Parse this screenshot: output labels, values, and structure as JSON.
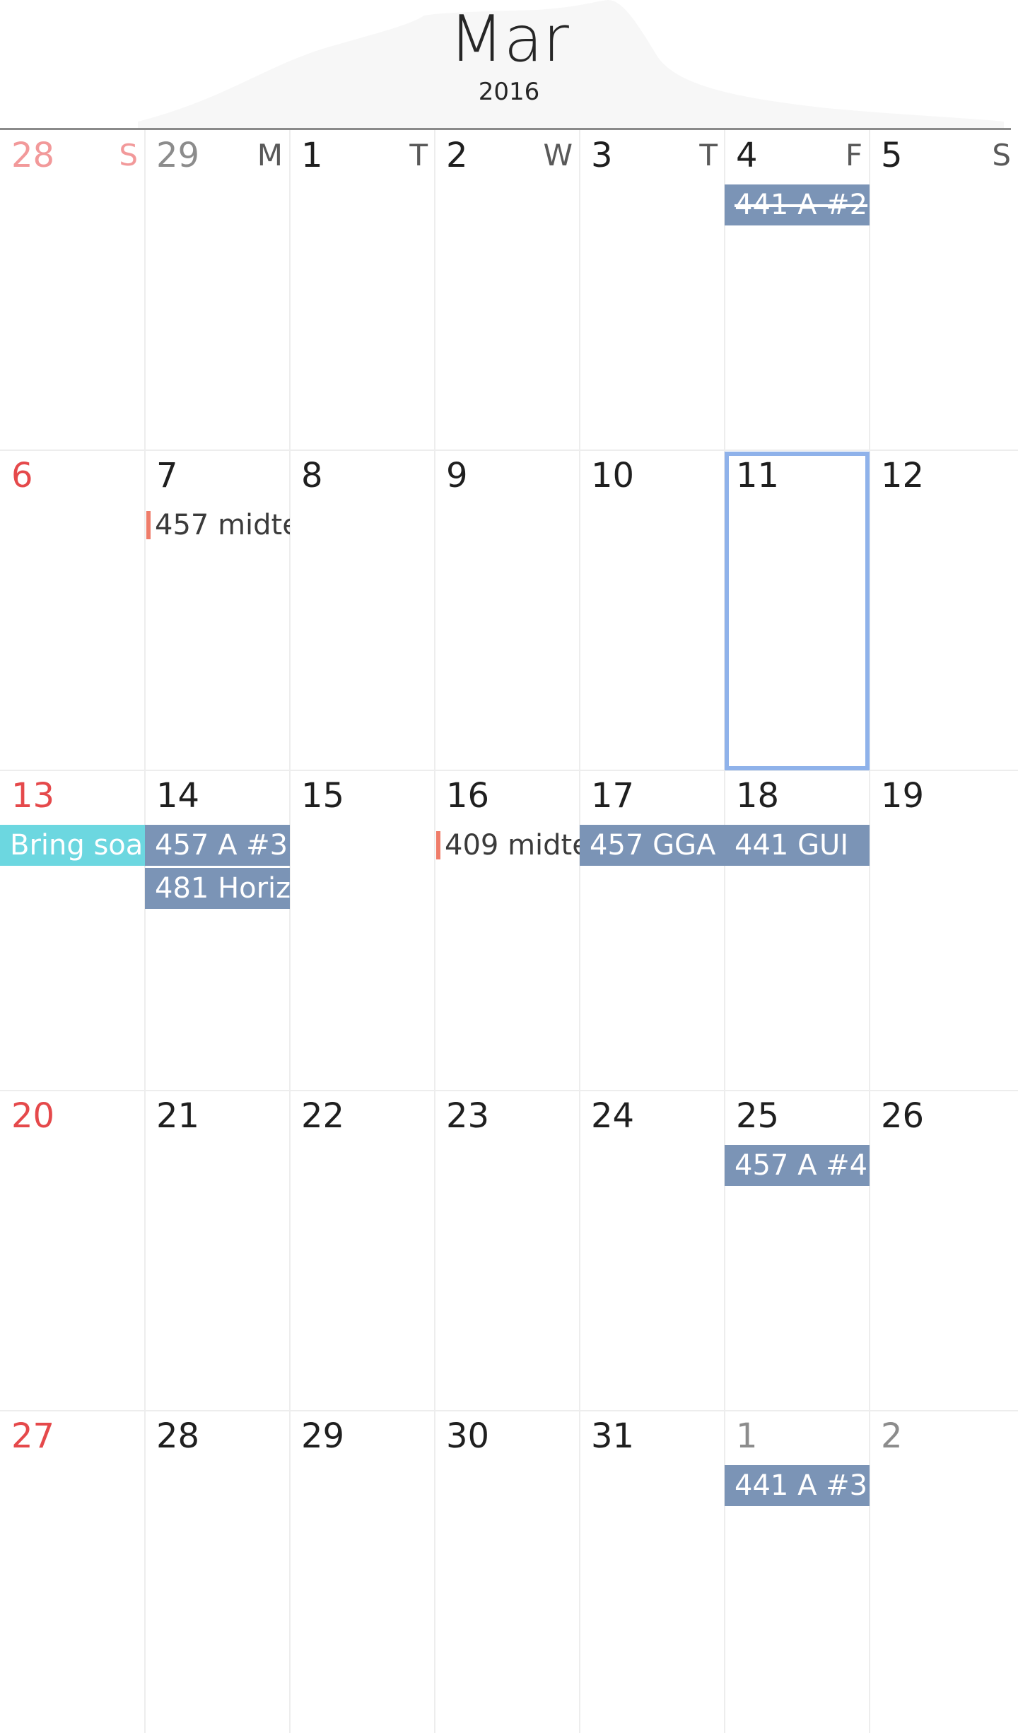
{
  "header": {
    "month": "Mar",
    "year": "2016"
  },
  "colors": {
    "sunday": "#e5494b",
    "outside_sunday": "#f2999a",
    "outside_day": "#8c8c8c",
    "event": "#7b94b6",
    "event_highlight": "#6cd7e0",
    "task_marker": "#ef7d6a",
    "today_border": "#8fb2ea"
  },
  "weekday_initials": [
    "S",
    "M",
    "T",
    "W",
    "T",
    "F",
    "S"
  ],
  "weeks": [
    {
      "days": [
        {
          "num": "28",
          "outside": true,
          "events": []
        },
        {
          "num": "29",
          "outside": true,
          "events": []
        },
        {
          "num": "1",
          "events": []
        },
        {
          "num": "2",
          "events": []
        },
        {
          "num": "3",
          "events": []
        },
        {
          "num": "4",
          "events": [
            {
              "text": "441 A #2",
              "kind": "event",
              "done": true
            }
          ]
        },
        {
          "num": "5",
          "events": []
        }
      ]
    },
    {
      "days": [
        {
          "num": "6",
          "events": []
        },
        {
          "num": "7",
          "events": [
            {
              "text": "457 midte",
              "kind": "task"
            }
          ]
        },
        {
          "num": "8",
          "events": []
        },
        {
          "num": "9",
          "events": []
        },
        {
          "num": "10",
          "events": []
        },
        {
          "num": "11",
          "today": true,
          "events": []
        },
        {
          "num": "12",
          "events": []
        }
      ]
    },
    {
      "days": [
        {
          "num": "13",
          "events": [
            {
              "text": "Bring soa",
              "kind": "highlight"
            }
          ]
        },
        {
          "num": "14",
          "events": [
            {
              "text": "457 A #3",
              "kind": "event"
            },
            {
              "text": "481 Horiz",
              "kind": "event"
            }
          ]
        },
        {
          "num": "15",
          "events": []
        },
        {
          "num": "16",
          "events": [
            {
              "text": "409 midte",
              "kind": "task"
            }
          ]
        },
        {
          "num": "17",
          "events": [
            {
              "text": "457 GGA",
              "kind": "event"
            }
          ]
        },
        {
          "num": "18",
          "events": [
            {
              "text": "441 GUI",
              "kind": "event"
            }
          ]
        },
        {
          "num": "19",
          "events": []
        }
      ]
    },
    {
      "days": [
        {
          "num": "20",
          "events": []
        },
        {
          "num": "21",
          "events": []
        },
        {
          "num": "22",
          "events": []
        },
        {
          "num": "23",
          "events": []
        },
        {
          "num": "24",
          "events": []
        },
        {
          "num": "25",
          "events": [
            {
              "text": "457 A #4",
              "kind": "event"
            }
          ]
        },
        {
          "num": "26",
          "events": []
        }
      ]
    },
    {
      "days": [
        {
          "num": "27",
          "events": []
        },
        {
          "num": "28",
          "events": []
        },
        {
          "num": "29",
          "events": []
        },
        {
          "num": "30",
          "events": []
        },
        {
          "num": "31",
          "events": []
        },
        {
          "num": "1",
          "outside": true,
          "events": [
            {
              "text": "441 A #3",
              "kind": "event"
            }
          ]
        },
        {
          "num": "2",
          "outside": true,
          "events": []
        }
      ]
    }
  ]
}
